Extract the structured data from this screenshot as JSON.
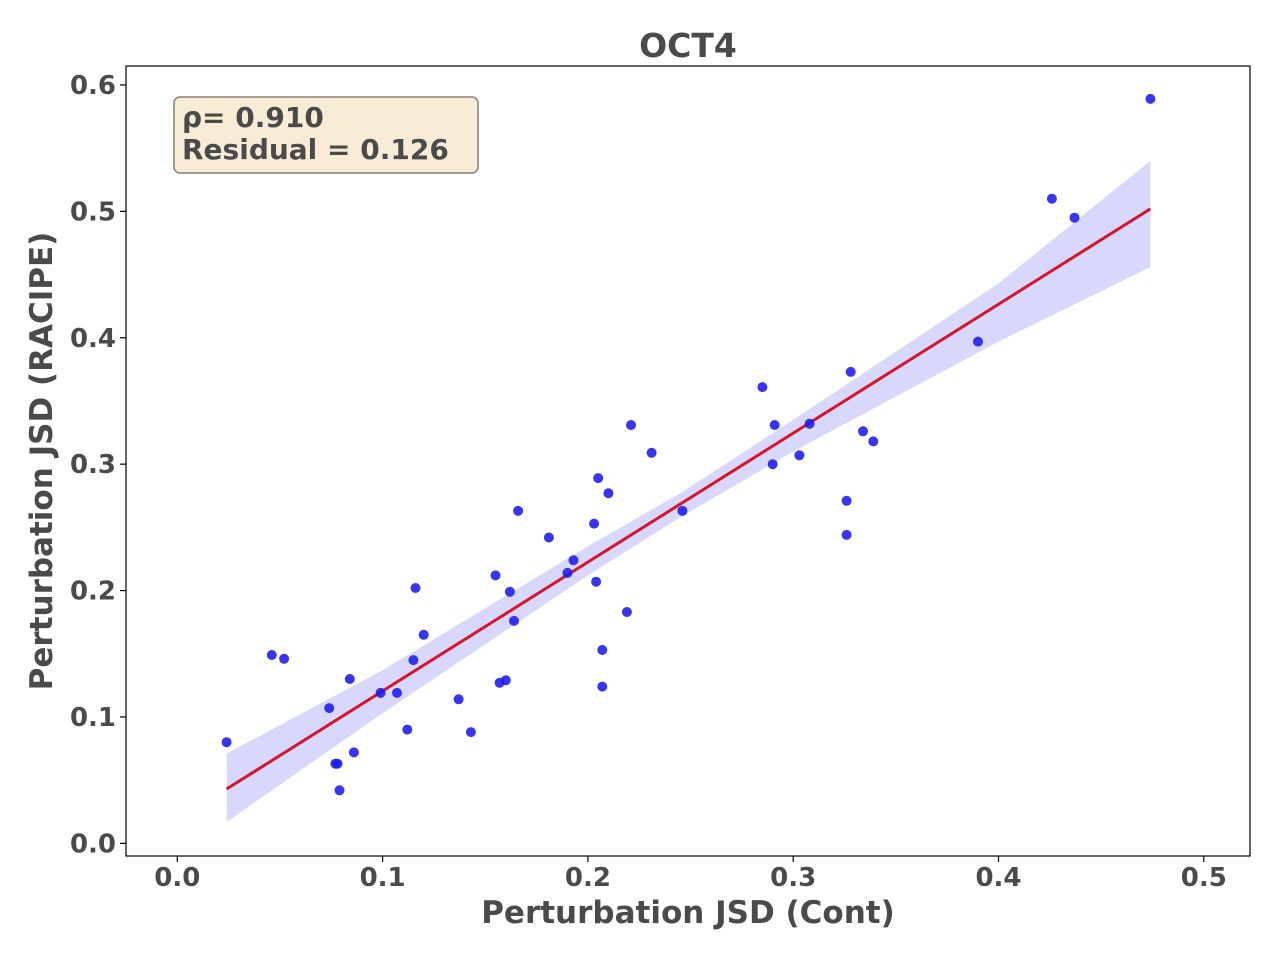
{
  "chart_data": {
    "type": "scatter",
    "title": "OCT4",
    "xlabel": "Perturbation JSD (Cont)",
    "ylabel": "Perturbation JSD (RACIPE)",
    "xlim": [
      -0.025,
      0.5225
    ],
    "ylim": [
      -0.01,
      0.615
    ],
    "xticks": [
      0.0,
      0.1,
      0.2,
      0.3,
      0.4,
      0.5
    ],
    "xtick_labels": [
      "0.0",
      "0.1",
      "0.2",
      "0.3",
      "0.4",
      "0.5"
    ],
    "yticks": [
      0.0,
      0.1,
      0.2,
      0.3,
      0.4,
      0.5,
      0.6
    ],
    "ytick_labels": [
      "0.0",
      "0.1",
      "0.2",
      "0.3",
      "0.4",
      "0.5",
      "0.6"
    ],
    "grid": false,
    "annotation": {
      "lines": [
        "ρ= 0.910",
        "Residual = 0.126"
      ],
      "placement": "top-left"
    },
    "colors": {
      "points": "#1a1aee",
      "regression_line": "#d4152b",
      "confidence_band": "#d8d8fc",
      "annotation_box_fill": "#f8ecd7",
      "annotation_box_edge": "#8a7f74",
      "text": "#4a4a4a"
    },
    "regression": {
      "x": [
        0.024,
        0.474
      ],
      "y": [
        0.043,
        0.502
      ]
    },
    "confidence_band": {
      "x": [
        0.024,
        0.1,
        0.2,
        0.245,
        0.3,
        0.4,
        0.474
      ],
      "lower": [
        0.017,
        0.103,
        0.212,
        0.258,
        0.31,
        0.397,
        0.456
      ],
      "upper": [
        0.071,
        0.137,
        0.235,
        0.277,
        0.335,
        0.443,
        0.54
      ]
    },
    "points": {
      "x": [
        0.024,
        0.046,
        0.052,
        0.074,
        0.077,
        0.078,
        0.079,
        0.084,
        0.086,
        0.099,
        0.107,
        0.112,
        0.115,
        0.116,
        0.12,
        0.137,
        0.143,
        0.155,
        0.157,
        0.16,
        0.162,
        0.164,
        0.166,
        0.181,
        0.19,
        0.193,
        0.203,
        0.204,
        0.205,
        0.207,
        0.207,
        0.21,
        0.219,
        0.221,
        0.231,
        0.246,
        0.285,
        0.29,
        0.291,
        0.303,
        0.308,
        0.326,
        0.326,
        0.328,
        0.334,
        0.339,
        0.39,
        0.426,
        0.437,
        0.474
      ],
      "y": [
        0.08,
        0.149,
        0.146,
        0.107,
        0.063,
        0.063,
        0.042,
        0.13,
        0.072,
        0.119,
        0.119,
        0.09,
        0.145,
        0.202,
        0.165,
        0.114,
        0.088,
        0.212,
        0.127,
        0.129,
        0.199,
        0.176,
        0.263,
        0.242,
        0.214,
        0.224,
        0.253,
        0.207,
        0.289,
        0.124,
        0.153,
        0.277,
        0.183,
        0.331,
        0.309,
        0.263,
        0.361,
        0.3,
        0.331,
        0.307,
        0.332,
        0.271,
        0.244,
        0.373,
        0.326,
        0.318,
        0.397,
        0.51,
        0.495,
        0.589
      ]
    }
  }
}
